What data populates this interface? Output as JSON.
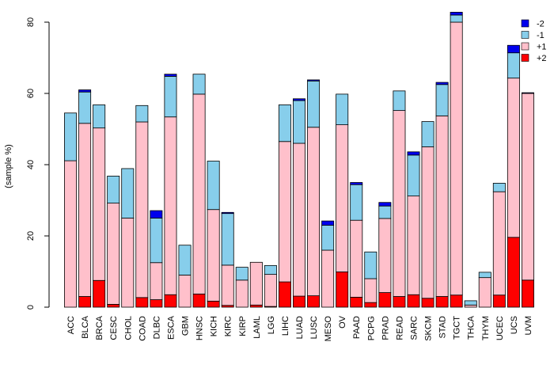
{
  "chart_data": {
    "type": "bar",
    "stacked": true,
    "title": "",
    "xlabel": "",
    "ylabel": "(sample %)",
    "ylim": [
      0,
      82
    ],
    "yticks": [
      0,
      20,
      40,
      60,
      80
    ],
    "legend_position": "top-right",
    "categories": [
      "ACC",
      "BLCA",
      "BRCA",
      "CESC",
      "CHOL",
      "COAD",
      "DLBC",
      "ESCA",
      "GBM",
      "HNSC",
      "KICH",
      "KIRC",
      "KIRP",
      "LAML",
      "LGG",
      "LIHC",
      "LUAD",
      "LUSC",
      "MESO",
      "OV",
      "PAAD",
      "PCPG",
      "PRAD",
      "READ",
      "SARC",
      "SKCM",
      "STAD",
      "TGCT",
      "THCA",
      "THYM",
      "UCEC",
      "UCS",
      "UVM"
    ],
    "series": [
      {
        "name": "+2",
        "color": "#ff0000",
        "values": [
          0,
          3.0,
          7.5,
          0.8,
          0,
          2.7,
          2.1,
          3.5,
          0,
          3.7,
          1.7,
          0.5,
          0,
          0.6,
          0.2,
          7.1,
          3.1,
          3.2,
          0,
          9.9,
          2.8,
          1.3,
          4.1,
          3.0,
          3.5,
          2.5,
          3.0,
          3.4,
          0,
          0,
          3.4,
          19.6,
          7.6
        ]
      },
      {
        "name": "+1",
        "color": "#ffc0cb",
        "values": [
          41.1,
          48.6,
          42.8,
          28.4,
          25.0,
          49.3,
          10.4,
          49.9,
          9.0,
          56.1,
          25.7,
          11.3,
          7.6,
          12.0,
          9.0,
          39.4,
          42.9,
          47.3,
          16.0,
          41.3,
          21.6,
          6.7,
          20.8,
          52.2,
          27.7,
          42.5,
          50.7,
          76.6,
          0.6,
          8.3,
          29.0,
          44.7,
          52.4
        ]
      },
      {
        "name": "-1",
        "color": "#87ceeb",
        "values": [
          13.4,
          8.8,
          6.5,
          7.6,
          13.9,
          4.6,
          12.5,
          11.4,
          8.4,
          5.6,
          13.6,
          14.5,
          3.6,
          0,
          2.5,
          10.3,
          12.0,
          13.0,
          7.0,
          8.6,
          10.0,
          7.5,
          3.5,
          5.5,
          11.5,
          7.1,
          8.8,
          2.0,
          1.2,
          1.5,
          2.4,
          7.1,
          0
        ]
      },
      {
        "name": "-2",
        "color": "#0000ee",
        "values": [
          0,
          0.6,
          0,
          0,
          0,
          0,
          2.1,
          0.6,
          0,
          0,
          0,
          0.3,
          0,
          0,
          0,
          0,
          0.5,
          0.3,
          1.2,
          0,
          0.6,
          0,
          1.0,
          0,
          0.9,
          0,
          0.6,
          0.8,
          0,
          0,
          0,
          2.1,
          0.2
        ]
      }
    ]
  }
}
